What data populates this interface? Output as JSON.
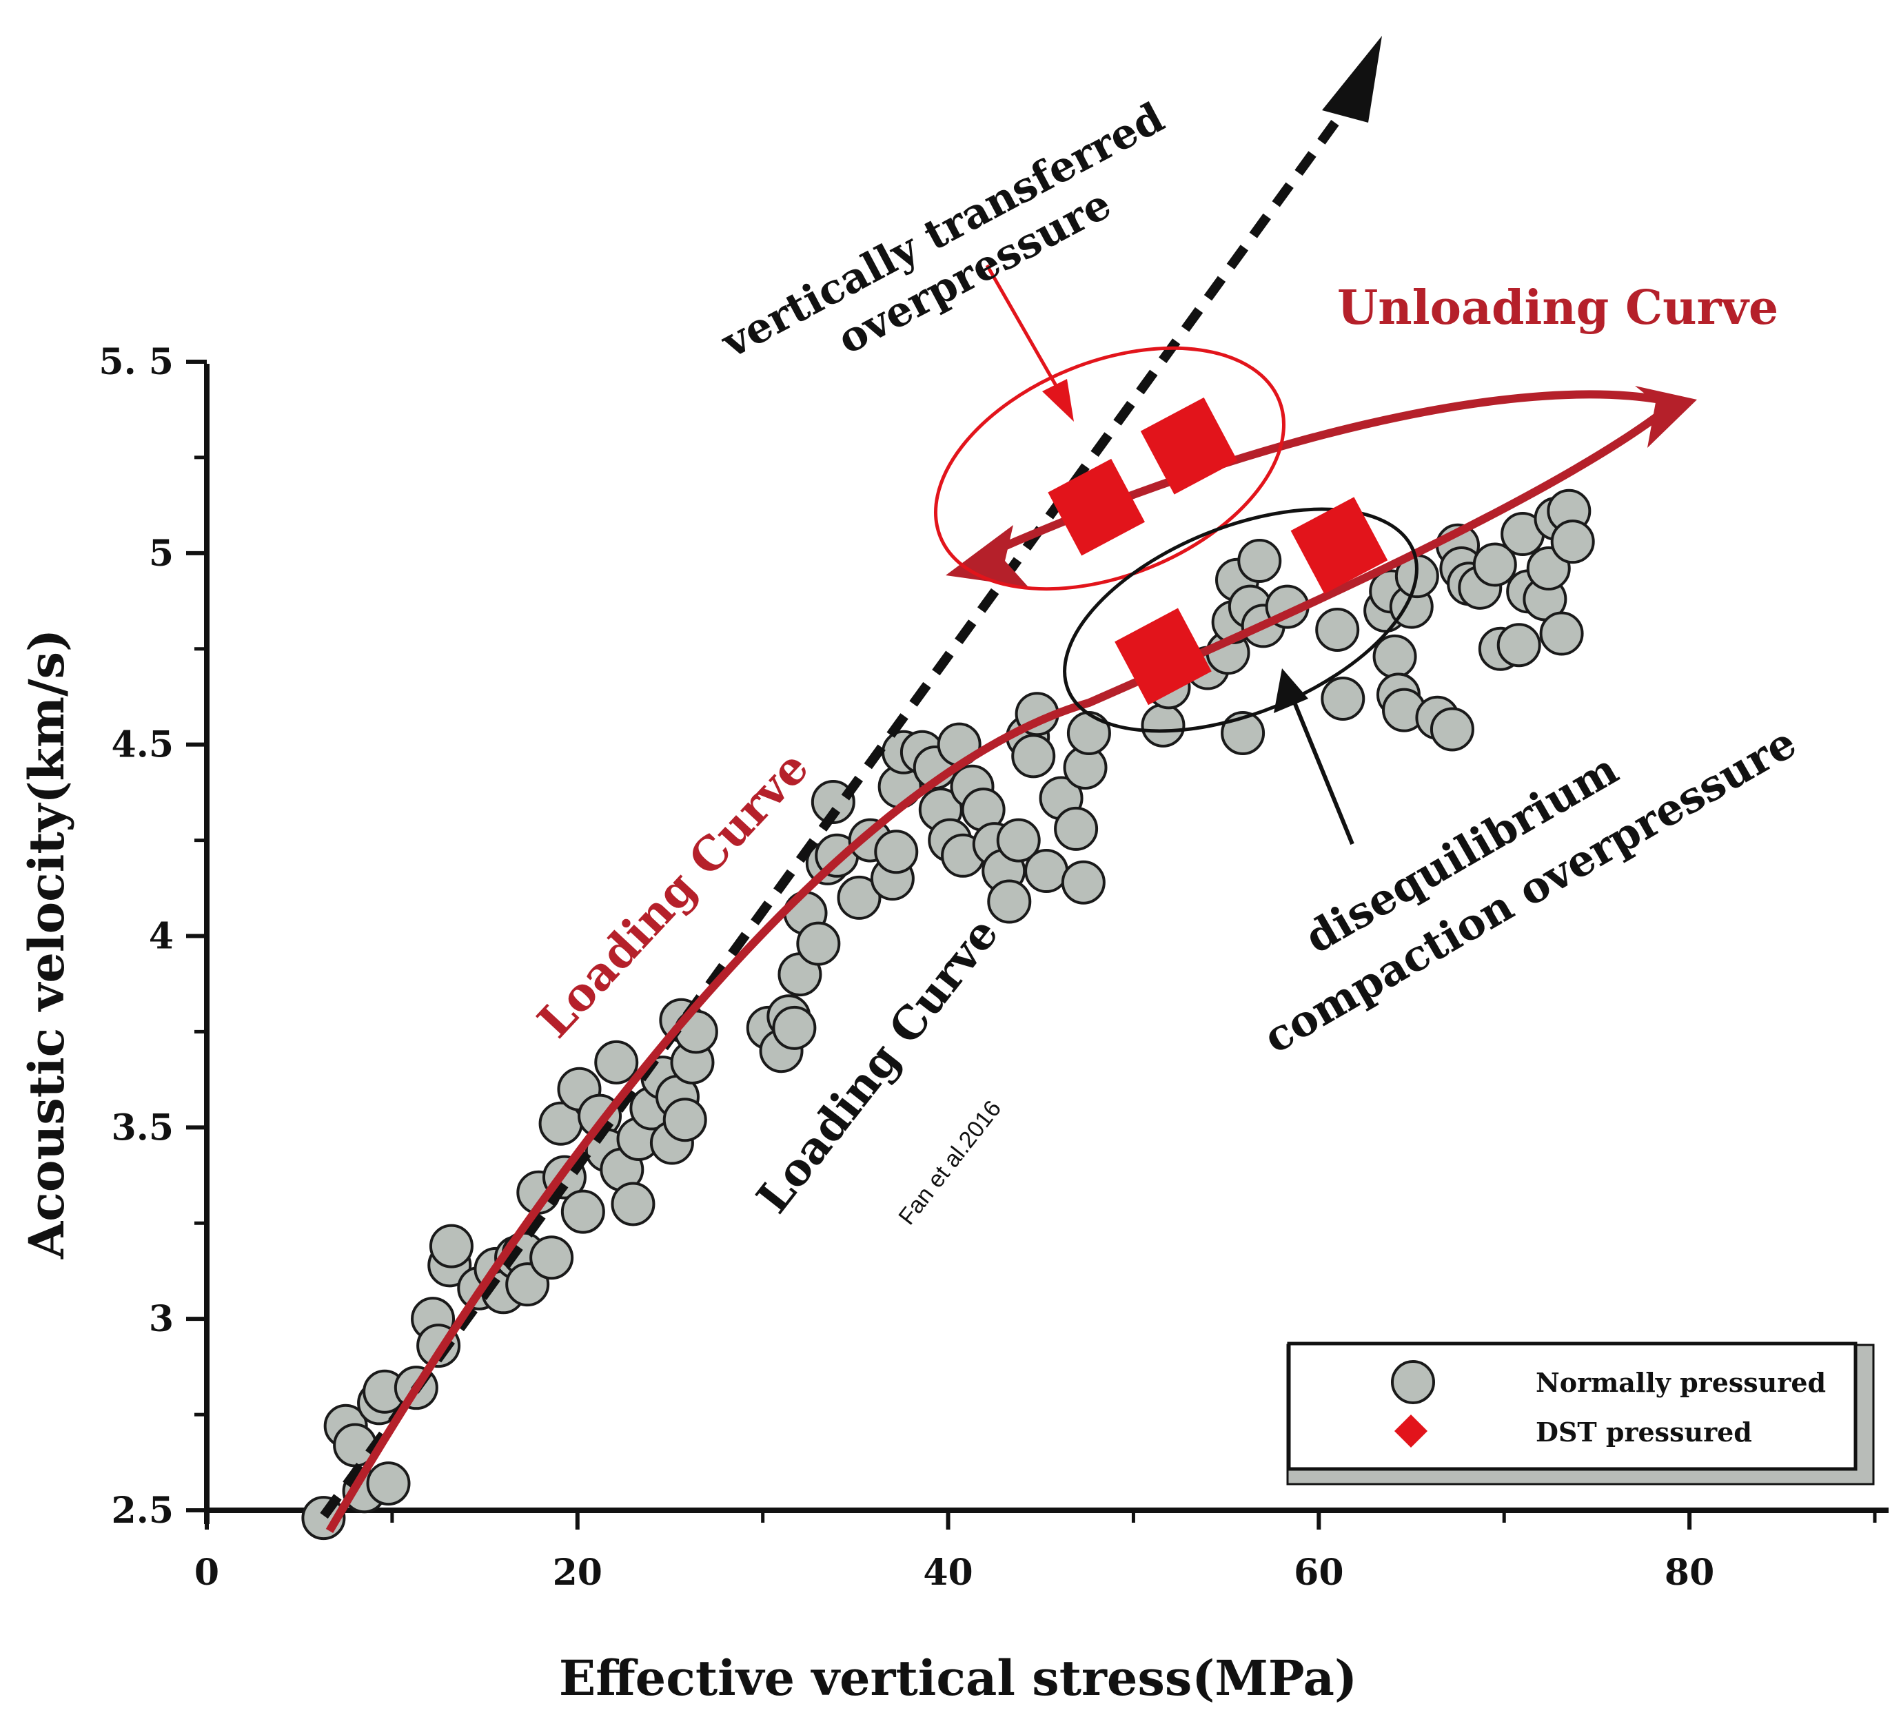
{
  "chart_data": {
    "type": "scatter",
    "xlabel": "Effective vertical stress(MPa)",
    "ylabel": "Acoustic velocity(km/s)",
    "xlim": [
      0,
      90
    ],
    "ylim": [
      2.5,
      5.5
    ],
    "x_ticks": [
      0,
      20,
      40,
      60,
      80
    ],
    "y_ticks": [
      2.5,
      3,
      3.5,
      4,
      4.5,
      5,
      5.5
    ],
    "x_tick_labels": [
      "0",
      "20",
      "40",
      "60",
      "80"
    ],
    "y_tick_labels": [
      "2.5",
      "3",
      "3.5",
      "4",
      "4.5",
      "5",
      "5. 5"
    ],
    "legend_position": "bottom-right",
    "series": [
      {
        "name": "Normally pressured",
        "marker": "circle",
        "color": "#b9bfba",
        "points": [
          [
            6.3,
            2.48
          ],
          [
            7.5,
            2.72
          ],
          [
            8.0,
            2.67
          ],
          [
            8.5,
            2.55
          ],
          [
            9.3,
            2.78
          ],
          [
            9.6,
            2.81
          ],
          [
            9.8,
            2.57
          ],
          [
            11.3,
            2.82
          ],
          [
            12.2,
            3.0
          ],
          [
            12.5,
            2.93
          ],
          [
            13.1,
            3.14
          ],
          [
            13.2,
            3.19
          ],
          [
            14.7,
            3.08
          ],
          [
            15.6,
            3.13
          ],
          [
            16.0,
            3.07
          ],
          [
            16.7,
            3.16
          ],
          [
            17.1,
            3.17
          ],
          [
            17.3,
            3.09
          ],
          [
            17.9,
            3.33
          ],
          [
            18.6,
            3.16
          ],
          [
            19.1,
            3.51
          ],
          [
            19.3,
            3.37
          ],
          [
            20.1,
            3.6
          ],
          [
            20.3,
            3.28
          ],
          [
            21.2,
            3.53
          ],
          [
            21.6,
            3.44
          ],
          [
            22.1,
            3.67
          ],
          [
            22.4,
            3.39
          ],
          [
            23.0,
            3.3
          ],
          [
            23.3,
            3.47
          ],
          [
            24.0,
            3.55
          ],
          [
            24.6,
            3.63
          ],
          [
            25.1,
            3.46
          ],
          [
            25.4,
            3.58
          ],
          [
            25.6,
            3.78
          ],
          [
            25.8,
            3.52
          ],
          [
            26.2,
            3.67
          ],
          [
            26.4,
            3.75
          ],
          [
            30.3,
            3.76
          ],
          [
            31.0,
            3.7
          ],
          [
            31.4,
            3.79
          ],
          [
            31.7,
            3.76
          ],
          [
            32.0,
            3.9
          ],
          [
            32.3,
            4.06
          ],
          [
            33.0,
            3.98
          ],
          [
            33.5,
            4.19
          ],
          [
            33.8,
            4.35
          ],
          [
            34.0,
            4.21
          ],
          [
            35.2,
            4.1
          ],
          [
            35.8,
            4.25
          ],
          [
            37.0,
            4.15
          ],
          [
            37.2,
            4.22
          ],
          [
            37.4,
            4.39
          ],
          [
            37.6,
            4.48
          ],
          [
            38.6,
            4.48
          ],
          [
            39.3,
            4.44
          ],
          [
            39.6,
            4.33
          ],
          [
            40.1,
            4.25
          ],
          [
            40.6,
            4.5
          ],
          [
            40.8,
            4.21
          ],
          [
            41.3,
            4.39
          ],
          [
            41.9,
            4.33
          ],
          [
            42.5,
            4.24
          ],
          [
            43.0,
            4.17
          ],
          [
            43.3,
            4.09
          ],
          [
            43.8,
            4.25
          ],
          [
            44.3,
            4.52
          ],
          [
            44.6,
            4.47
          ],
          [
            44.8,
            4.58
          ],
          [
            45.3,
            4.17
          ],
          [
            46.1,
            4.36
          ],
          [
            46.9,
            4.28
          ],
          [
            47.3,
            4.14
          ],
          [
            47.4,
            4.44
          ],
          [
            47.6,
            4.53
          ],
          [
            51.6,
            4.55
          ],
          [
            51.9,
            4.65
          ],
          [
            52.4,
            4.71
          ],
          [
            54.0,
            4.7
          ],
          [
            55.1,
            4.74
          ],
          [
            55.4,
            4.82
          ],
          [
            55.6,
            4.93
          ],
          [
            55.9,
            4.53
          ],
          [
            56.3,
            4.86
          ],
          [
            56.8,
            4.98
          ],
          [
            57.0,
            4.81
          ],
          [
            58.3,
            4.86
          ],
          [
            61.0,
            4.8
          ],
          [
            61.3,
            4.62
          ],
          [
            63.6,
            4.85
          ],
          [
            63.9,
            4.9
          ],
          [
            64.1,
            4.73
          ],
          [
            64.3,
            4.63
          ],
          [
            64.6,
            4.59
          ],
          [
            65.0,
            4.86
          ],
          [
            65.3,
            4.94
          ],
          [
            66.4,
            4.57
          ],
          [
            67.2,
            4.54
          ],
          [
            67.5,
            5.02
          ],
          [
            67.7,
            4.96
          ],
          [
            68.1,
            4.92
          ],
          [
            68.7,
            4.91
          ],
          [
            69.5,
            4.97
          ],
          [
            69.8,
            4.75
          ],
          [
            70.8,
            4.76
          ],
          [
            71.0,
            5.05
          ],
          [
            71.3,
            4.9
          ],
          [
            72.2,
            4.88
          ],
          [
            72.4,
            4.96
          ],
          [
            72.8,
            5.09
          ],
          [
            73.1,
            4.79
          ],
          [
            73.5,
            5.11
          ],
          [
            73.7,
            5.03
          ]
        ]
      },
      {
        "name": "DST pressured",
        "marker": "diamond",
        "color": "#e2141b",
        "points": [
          [
            48.0,
            5.12
          ],
          [
            53.0,
            5.28
          ],
          [
            51.6,
            4.73
          ],
          [
            61.1,
            5.02
          ]
        ]
      }
    ],
    "curves": [
      {
        "name": "Loading Curve",
        "style": "solid",
        "color": "#b5202a",
        "from": [
          6.3,
          2.48
        ],
        "to": [
          64.0,
          5.05
        ]
      },
      {
        "name": "Loading Curve (Fan et al.2016)",
        "style": "dashed",
        "color": "#111111",
        "from": [
          6.3,
          2.48
        ],
        "to": [
          64.5,
          6.0
        ]
      },
      {
        "name": "Unloading Curve",
        "style": "solid",
        "color": "#b5202a",
        "from": [
          40.5,
          4.95
        ],
        "to": [
          80.0,
          5.33
        ]
      }
    ],
    "annotations": {
      "loading_curve_red": "Loading Curve",
      "loading_curve_black": "Loading Curve",
      "citation": "Fan et al.2016",
      "unloading_curve": "Unloading Curve",
      "vertical_line1": "vertically transferred",
      "vertical_line2": "overpressure",
      "diseq_line1": "disequilibrium",
      "diseq_line2": "compaction overpressure"
    }
  },
  "legend": {
    "items": [
      {
        "label": "Normally pressured",
        "marker": "circle"
      },
      {
        "label": "DST pressured",
        "marker": "diamond"
      }
    ]
  },
  "colors": {
    "curve_red": "#b5202a",
    "dst_red": "#e2141b",
    "point_fill": "#b9bfba",
    "axis": "#111111"
  }
}
